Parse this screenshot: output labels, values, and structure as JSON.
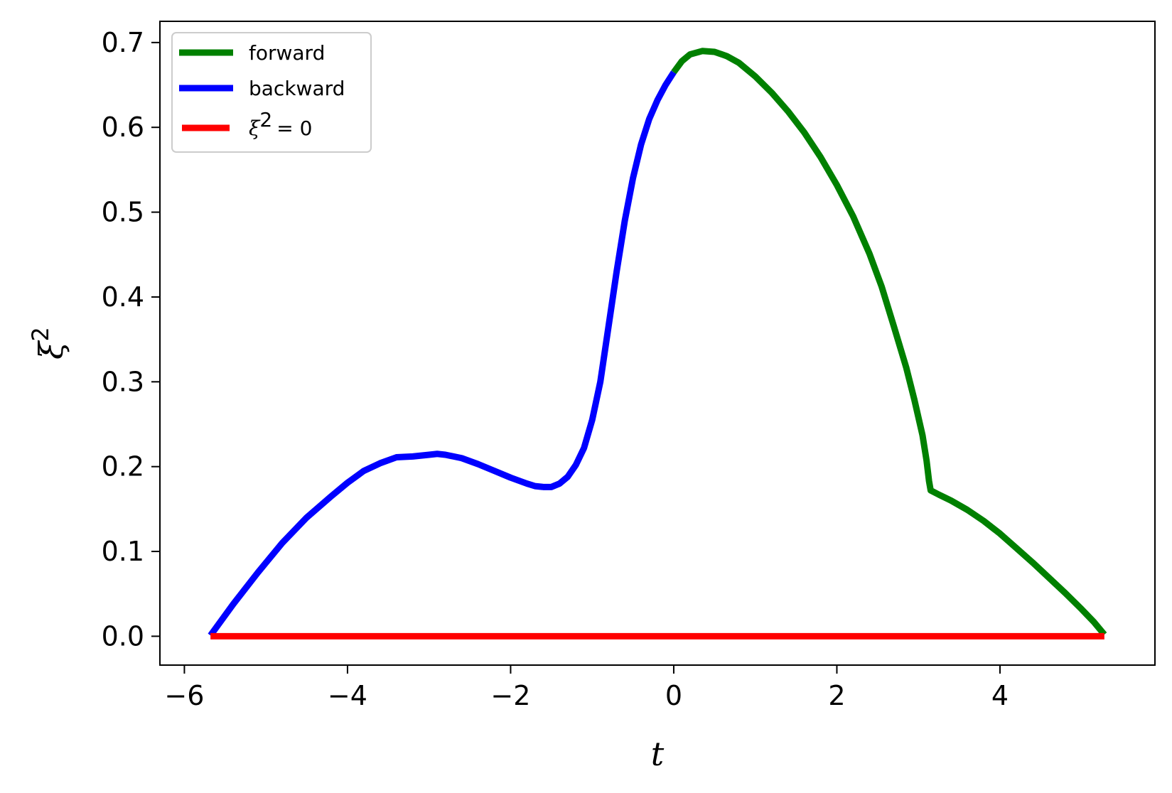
{
  "chart_data": {
    "type": "line",
    "xlabel": "t",
    "ylabel": "ξ",
    "ylabel_sup": "2",
    "xlim": [
      -6.3,
      5.9
    ],
    "ylim": [
      -0.034,
      0.725
    ],
    "xticks": [
      -6,
      -4,
      -2,
      0,
      2,
      4
    ],
    "xtick_labels": [
      "−6",
      "−4",
      "−2",
      "0",
      "2",
      "4"
    ],
    "yticks": [
      0.0,
      0.1,
      0.2,
      0.3,
      0.4,
      0.5,
      0.6,
      0.7
    ],
    "ytick_labels": [
      "0.0",
      "0.1",
      "0.2",
      "0.3",
      "0.4",
      "0.5",
      "0.6",
      "0.7"
    ],
    "grid": false,
    "legend_position": "top-left",
    "series": [
      {
        "name": "forward",
        "color": "#008000",
        "x": [
          0.0,
          0.1,
          0.2,
          0.35,
          0.5,
          0.65,
          0.8,
          1.0,
          1.2,
          1.4,
          1.6,
          1.8,
          2.0,
          2.2,
          2.4,
          2.55,
          2.7,
          2.85,
          2.95,
          3.05,
          3.1,
          3.13,
          3.15,
          3.25,
          3.4,
          3.6,
          3.8,
          4.0,
          4.2,
          4.4,
          4.6,
          4.8,
          5.0,
          5.15,
          5.28
        ],
        "y": [
          0.665,
          0.678,
          0.686,
          0.69,
          0.689,
          0.684,
          0.676,
          0.66,
          0.641,
          0.619,
          0.594,
          0.565,
          0.532,
          0.495,
          0.451,
          0.412,
          0.365,
          0.317,
          0.279,
          0.237,
          0.207,
          0.183,
          0.172,
          0.167,
          0.16,
          0.149,
          0.136,
          0.121,
          0.104,
          0.087,
          0.069,
          0.051,
          0.032,
          0.017,
          0.002
        ]
      },
      {
        "name": "backward",
        "color": "#0000ff",
        "x": [
          0.0,
          -0.1,
          -0.2,
          -0.3,
          -0.4,
          -0.5,
          -0.6,
          -0.7,
          -0.8,
          -0.9,
          -1.0,
          -1.1,
          -1.2,
          -1.3,
          -1.4,
          -1.5,
          -1.6,
          -1.7,
          -1.8,
          -2.0,
          -2.2,
          -2.4,
          -2.6,
          -2.8,
          -2.9,
          -3.0,
          -3.2,
          -3.4,
          -3.6,
          -3.8,
          -4.0,
          -4.2,
          -4.5,
          -4.8,
          -5.1,
          -5.4,
          -5.68
        ],
        "y": [
          0.665,
          0.65,
          0.632,
          0.61,
          0.58,
          0.54,
          0.49,
          0.43,
          0.365,
          0.3,
          0.255,
          0.222,
          0.202,
          0.188,
          0.18,
          0.176,
          0.176,
          0.177,
          0.18,
          0.187,
          0.195,
          0.203,
          0.21,
          0.214,
          0.215,
          0.214,
          0.212,
          0.211,
          0.204,
          0.195,
          0.181,
          0.165,
          0.14,
          0.11,
          0.075,
          0.038,
          0.001
        ]
      },
      {
        "name": "ξ",
        "name_sup": "2",
        "name_suffix": "= 0",
        "color": "#ff0000",
        "x": [
          -5.68,
          5.28
        ],
        "y": [
          0.0,
          0.0
        ]
      }
    ]
  }
}
